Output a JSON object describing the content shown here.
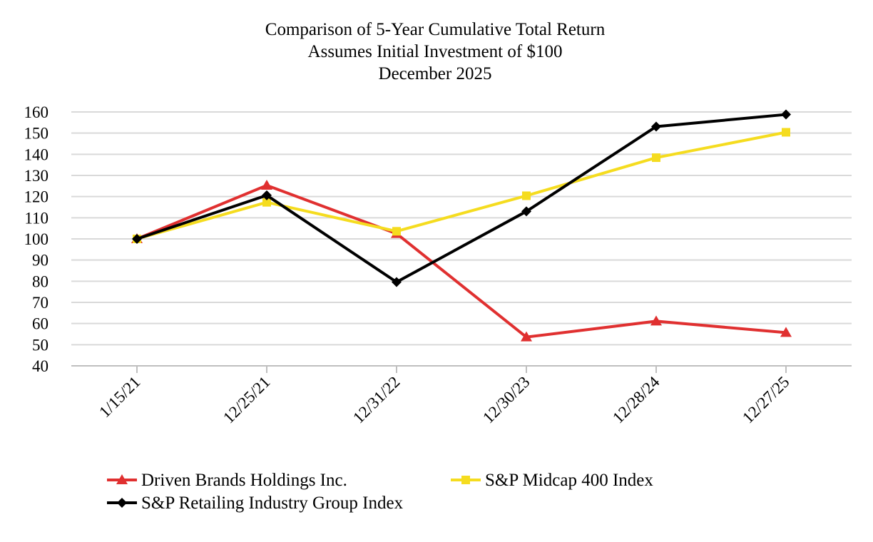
{
  "chart_data": {
    "type": "line",
    "title": "Comparison of 5-Year Cumulative Total Return",
    "subtitle": "Assumes Initial Investment of $100",
    "subtitle2": "December 2025",
    "categories": [
      "1/15/21",
      "12/25/21",
      "12/31/22",
      "12/30/23",
      "12/28/24",
      "12/27/25"
    ],
    "ylim": [
      40,
      160
    ],
    "yticks": [
      40,
      50,
      60,
      70,
      80,
      90,
      100,
      110,
      120,
      130,
      140,
      150,
      160
    ],
    "grid": true,
    "legend_position": "bottom",
    "series": [
      {
        "name": "Driven Brands Holdings Inc.",
        "color": "#e03030",
        "marker": "triangle",
        "values": [
          100,
          125.3,
          102.5,
          53.6,
          61.1,
          55.7
        ]
      },
      {
        "name": "S&P Midcap 400 Index",
        "color": "#f5dc1f",
        "marker": "square",
        "values": [
          100,
          117.3,
          103.6,
          120.4,
          138.4,
          150.4
        ]
      },
      {
        "name": "S&P Retailing Industry Group Index",
        "color": "#000000",
        "marker": "diamond",
        "values": [
          100,
          120.6,
          79.6,
          113.0,
          153.1,
          158.8
        ]
      }
    ]
  }
}
